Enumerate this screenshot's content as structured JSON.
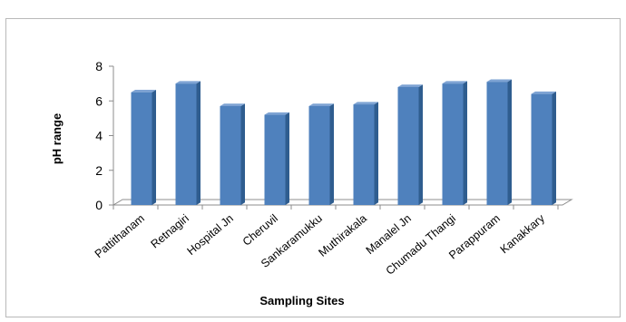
{
  "chart_data": {
    "type": "bar",
    "title": "",
    "xlabel": "Sampling Sites",
    "ylabel": "pH range",
    "categories": [
      "Pattithanam",
      "Retnagiri",
      "Hospital Jn",
      "Cheruvil",
      "Sankaramukku",
      "Muthirakala",
      "Manalel Jn",
      "Chumadu Thangi",
      "Parappuram",
      "Kanakkary"
    ],
    "values": [
      6.5,
      7.0,
      5.7,
      5.2,
      5.7,
      5.8,
      6.8,
      7.0,
      7.1,
      6.4
    ],
    "ylim": [
      0,
      8
    ],
    "yticks": [
      0,
      2,
      4,
      6,
      8
    ],
    "grid": false,
    "legend": "none",
    "bar_color": "#4f81bd"
  }
}
